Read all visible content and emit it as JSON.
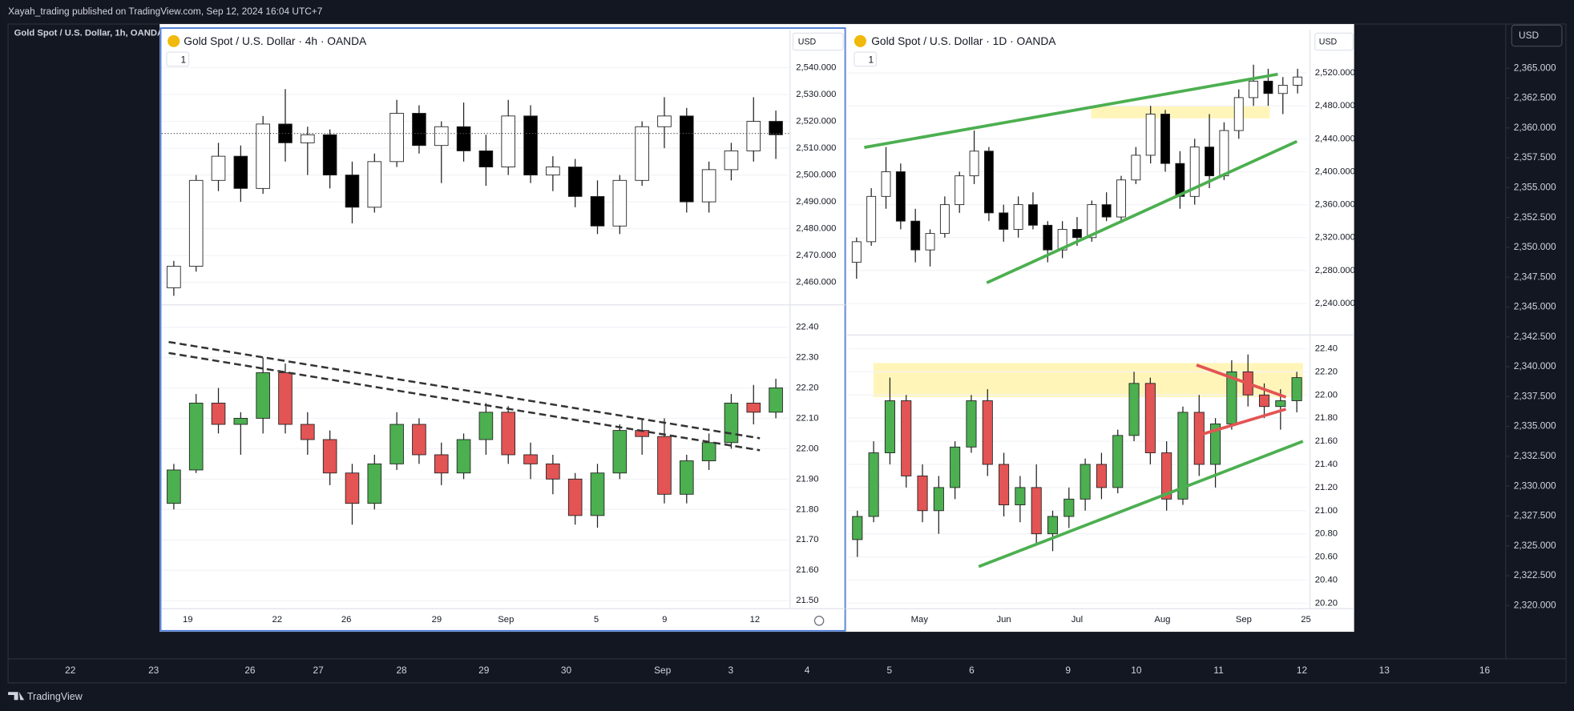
{
  "header": {
    "publisher": "Xayah_trading published on TradingView.com, Sep 12, 2024 16:04 UTC+7"
  },
  "main": {
    "title": "Gold Spot / U.S. Dollar, 1h, OANDA",
    "currency": "USD",
    "ylim": [
      2315.7,
      2368.7
    ],
    "yticks": [
      {
        "value": 2365,
        "label": "2,365.000"
      },
      {
        "value": 2362.5,
        "label": "2,362.500"
      },
      {
        "value": 2360,
        "label": "2,360.000"
      },
      {
        "value": 2357.5,
        "label": "2,357.500"
      },
      {
        "value": 2355,
        "label": "2,355.000"
      },
      {
        "value": 2352.5,
        "label": "2,352.500"
      },
      {
        "value": 2350,
        "label": "2,350.000"
      },
      {
        "value": 2347.5,
        "label": "2,347.500"
      },
      {
        "value": 2345,
        "label": "2,345.000"
      },
      {
        "value": 2342.5,
        "label": "2,342.500"
      },
      {
        "value": 2340,
        "label": "2,340.000"
      },
      {
        "value": 2337.5,
        "label": "2,337.500"
      },
      {
        "value": 2335,
        "label": "2,335.000"
      },
      {
        "value": 2332.5,
        "label": "2,332.500"
      },
      {
        "value": 2330,
        "label": "2,330.000"
      },
      {
        "value": 2327.5,
        "label": "2,327.500"
      },
      {
        "value": 2325,
        "label": "2,325.000"
      },
      {
        "value": 2322.5,
        "label": "2,322.500"
      },
      {
        "value": 2320,
        "label": "2,320.000"
      }
    ],
    "time_labels": [
      "22",
      "23",
      "26",
      "27",
      "28",
      "29",
      "30",
      "Sep",
      "3",
      "4",
      "5",
      "6",
      "9",
      "10",
      "11",
      "12",
      "13",
      "16"
    ]
  },
  "footer": {
    "brand": "TradingView"
  },
  "panels": [
    {
      "title": "Gold Spot / U.S. Dollar · 4h · OANDA",
      "currency": "USD",
      "badge": "1",
      "time_labels": [
        "19",
        "22",
        "26",
        "29",
        "Sep",
        "5",
        "9",
        "12"
      ],
      "panes": [
        {
          "type": "candlestick",
          "ylim": [
            2452,
            2554
          ],
          "up_color": "#ffffff",
          "down_color": "#000000",
          "yticks": [
            {
              "value": 2540,
              "label": "2,540.000"
            },
            {
              "value": 2530,
              "label": "2,530.000"
            },
            {
              "value": 2520,
              "label": "2,520.000"
            },
            {
              "value": 2510,
              "label": "2,510.000"
            },
            {
              "value": 2500,
              "label": "2,500.000"
            },
            {
              "value": 2490,
              "label": "2,490.000"
            },
            {
              "value": 2480,
              "label": "2,480.000"
            },
            {
              "value": 2470,
              "label": "2,470.000"
            },
            {
              "value": 2460,
              "label": "2,460.000"
            }
          ],
          "candles": [
            [
              2458,
              2468,
              2455,
              2466
            ],
            [
              2466,
              2500,
              2464,
              2498
            ],
            [
              2498,
              2512,
              2494,
              2507
            ],
            [
              2507,
              2511,
              2490,
              2495
            ],
            [
              2495,
              2522,
              2493,
              2519
            ],
            [
              2519,
              2532,
              2505,
              2512
            ],
            [
              2512,
              2518,
              2500,
              2515
            ],
            [
              2515,
              2517,
              2495,
              2500
            ],
            [
              2500,
              2505,
              2482,
              2488
            ],
            [
              2488,
              2508,
              2486,
              2505
            ],
            [
              2505,
              2528,
              2503,
              2523
            ],
            [
              2523,
              2526,
              2508,
              2511
            ],
            [
              2511,
              2520,
              2497,
              2518
            ],
            [
              2518,
              2527,
              2505,
              2509
            ],
            [
              2509,
              2515,
              2496,
              2503
            ],
            [
              2503,
              2528,
              2500,
              2522
            ],
            [
              2522,
              2526,
              2497,
              2500
            ],
            [
              2500,
              2507,
              2494,
              2503
            ],
            [
              2503,
              2506,
              2488,
              2492
            ],
            [
              2492,
              2498,
              2478,
              2481
            ],
            [
              2481,
              2500,
              2478,
              2498
            ],
            [
              2498,
              2520,
              2496,
              2518
            ],
            [
              2518,
              2529,
              2510,
              2522
            ],
            [
              2522,
              2525,
              2486,
              2490
            ],
            [
              2490,
              2505,
              2486,
              2502
            ],
            [
              2502,
              2512,
              2498,
              2509
            ],
            [
              2509,
              2529,
              2505,
              2520
            ],
            [
              2520,
              2524,
              2506,
              2515
            ]
          ]
        },
        {
          "type": "candlestick",
          "ylim": [
            21.48,
            22.47
          ],
          "up_color": "#4caf50",
          "down_color": "#e35454",
          "yticks": [
            {
              "value": 22.4,
              "label": "22.40"
            },
            {
              "value": 22.3,
              "label": "22.30"
            },
            {
              "value": 22.2,
              "label": "22.20"
            },
            {
              "value": 22.1,
              "label": "22.10"
            },
            {
              "value": 22,
              "label": "22.00"
            },
            {
              "value": 21.9,
              "label": "21.90"
            },
            {
              "value": 21.8,
              "label": "21.80"
            },
            {
              "value": 21.7,
              "label": "21.70"
            },
            {
              "value": 21.6,
              "label": "21.60"
            },
            {
              "value": 21.5,
              "label": "21.50"
            }
          ],
          "candles": [
            [
              21.82,
              21.95,
              21.8,
              21.93
            ],
            [
              21.93,
              22.18,
              21.92,
              22.15
            ],
            [
              22.15,
              22.2,
              22.05,
              22.08
            ],
            [
              22.08,
              22.12,
              21.98,
              22.1
            ],
            [
              22.1,
              22.3,
              22.05,
              22.25
            ],
            [
              22.25,
              22.28,
              22.05,
              22.08
            ],
            [
              22.08,
              22.12,
              21.98,
              22.03
            ],
            [
              22.03,
              22.06,
              21.88,
              21.92
            ],
            [
              21.92,
              21.95,
              21.75,
              21.82
            ],
            [
              21.82,
              21.98,
              21.8,
              21.95
            ],
            [
              21.95,
              22.12,
              21.93,
              22.08
            ],
            [
              22.08,
              22.1,
              21.95,
              21.98
            ],
            [
              21.98,
              22.02,
              21.88,
              21.92
            ],
            [
              21.92,
              22.05,
              21.9,
              22.03
            ],
            [
              22.03,
              22.15,
              21.98,
              22.12
            ],
            [
              22.12,
              22.14,
              21.95,
              21.98
            ],
            [
              21.98,
              22.02,
              21.9,
              21.95
            ],
            [
              21.95,
              21.98,
              21.85,
              21.9
            ],
            [
              21.9,
              21.92,
              21.75,
              21.78
            ],
            [
              21.78,
              21.95,
              21.74,
              21.92
            ],
            [
              21.92,
              22.08,
              21.9,
              22.06
            ],
            [
              22.06,
              22.1,
              21.98,
              22.04
            ],
            [
              22.04,
              22.1,
              21.82,
              21.85
            ],
            [
              21.85,
              21.98,
              21.82,
              21.96
            ],
            [
              21.96,
              22.05,
              21.93,
              22.02
            ],
            [
              22.02,
              22.18,
              22.0,
              22.15
            ],
            [
              22.15,
              22.21,
              22.08,
              22.12
            ],
            [
              22.12,
              22.23,
              22.1,
              22.2
            ]
          ]
        }
      ]
    },
    {
      "title": "Gold Spot / U.S. Dollar · 1D · OANDA",
      "currency": "USD",
      "badge": "1",
      "time_labels": [
        "May",
        "Jun",
        "Jul",
        "Aug",
        "Sep",
        "25"
      ],
      "panes": [
        {
          "type": "candlestick",
          "ylim": [
            2203,
            2572
          ],
          "up_color": "#ffffff",
          "down_color": "#000000",
          "yticks": [
            {
              "value": 2520,
              "label": "2,520.000"
            },
            {
              "value": 2480,
              "label": "2,480.000"
            },
            {
              "value": 2440,
              "label": "2,440.000"
            },
            {
              "value": 2400,
              "label": "2,400.000"
            },
            {
              "value": 2360,
              "label": "2,360.000"
            },
            {
              "value": 2320,
              "label": "2,320.000"
            },
            {
              "value": 2280,
              "label": "2,280.000"
            },
            {
              "value": 2240,
              "label": "2,240.000"
            }
          ],
          "candles": [
            [
              2290,
              2320,
              2270,
              2315
            ],
            [
              2315,
              2380,
              2310,
              2370
            ],
            [
              2370,
              2430,
              2355,
              2400
            ],
            [
              2400,
              2410,
              2330,
              2340
            ],
            [
              2340,
              2355,
              2290,
              2305
            ],
            [
              2305,
              2330,
              2285,
              2325
            ],
            [
              2325,
              2370,
              2320,
              2360
            ],
            [
              2360,
              2400,
              2350,
              2395
            ],
            [
              2395,
              2450,
              2385,
              2425
            ],
            [
              2425,
              2430,
              2340,
              2350
            ],
            [
              2350,
              2360,
              2315,
              2330
            ],
            [
              2330,
              2370,
              2320,
              2360
            ],
            [
              2360,
              2375,
              2330,
              2335
            ],
            [
              2335,
              2340,
              2290,
              2305
            ],
            [
              2305,
              2340,
              2295,
              2330
            ],
            [
              2330,
              2345,
              2310,
              2320
            ],
            [
              2320,
              2365,
              2315,
              2360
            ],
            [
              2360,
              2375,
              2340,
              2345
            ],
            [
              2345,
              2395,
              2340,
              2390
            ],
            [
              2390,
              2430,
              2385,
              2420
            ],
            [
              2420,
              2480,
              2410,
              2470
            ],
            [
              2470,
              2475,
              2400,
              2410
            ],
            [
              2410,
              2425,
              2355,
              2370
            ],
            [
              2370,
              2440,
              2360,
              2430
            ],
            [
              2430,
              2470,
              2380,
              2395
            ],
            [
              2395,
              2460,
              2390,
              2450
            ],
            [
              2450,
              2500,
              2440,
              2490
            ],
            [
              2490,
              2530,
              2480,
              2510
            ],
            [
              2510,
              2525,
              2480,
              2495
            ],
            [
              2495,
              2515,
              2470,
              2505
            ],
            [
              2505,
              2525,
              2495,
              2515
            ]
          ]
        },
        {
          "type": "candlestick",
          "ylim": [
            20.17,
            22.51
          ],
          "up_color": "#4caf50",
          "down_color": "#e35454",
          "yticks": [
            {
              "value": 22.4,
              "label": "22.40"
            },
            {
              "value": 22.2,
              "label": "22.20"
            },
            {
              "value": 22,
              "label": "22.00"
            },
            {
              "value": 21.8,
              "label": "21.80"
            },
            {
              "value": 21.6,
              "label": "21.60"
            },
            {
              "value": 21.4,
              "label": "21.40"
            },
            {
              "value": 21.2,
              "label": "21.20"
            },
            {
              "value": 21,
              "label": "21.00"
            },
            {
              "value": 20.8,
              "label": "20.80"
            },
            {
              "value": 20.6,
              "label": "20.60"
            },
            {
              "value": 20.4,
              "label": "20.40"
            },
            {
              "value": 20.2,
              "label": "20.20"
            }
          ],
          "candles": [
            [
              20.75,
              21.0,
              20.6,
              20.95
            ],
            [
              20.95,
              21.6,
              20.9,
              21.5
            ],
            [
              21.5,
              22.15,
              21.4,
              21.95
            ],
            [
              21.95,
              22.0,
              21.2,
              21.3
            ],
            [
              21.3,
              21.4,
              20.9,
              21.0
            ],
            [
              21.0,
              21.3,
              20.8,
              21.2
            ],
            [
              21.2,
              21.6,
              21.1,
              21.55
            ],
            [
              21.55,
              22.0,
              21.5,
              21.95
            ],
            [
              21.95,
              22.05,
              21.3,
              21.4
            ],
            [
              21.4,
              21.5,
              20.95,
              21.05
            ],
            [
              21.05,
              21.3,
              20.9,
              21.2
            ],
            [
              21.2,
              21.4,
              20.7,
              20.8
            ],
            [
              20.8,
              21.0,
              20.65,
              20.95
            ],
            [
              20.95,
              21.2,
              20.85,
              21.1
            ],
            [
              21.1,
              21.45,
              21.0,
              21.4
            ],
            [
              21.4,
              21.5,
              21.1,
              21.2
            ],
            [
              21.2,
              21.7,
              21.15,
              21.65
            ],
            [
              21.65,
              22.2,
              21.6,
              22.1
            ],
            [
              22.1,
              22.15,
              21.4,
              21.5
            ],
            [
              21.5,
              21.6,
              21.0,
              21.1
            ],
            [
              21.1,
              21.9,
              21.05,
              21.85
            ],
            [
              21.85,
              22.0,
              21.3,
              21.4
            ],
            [
              21.4,
              21.8,
              21.2,
              21.75
            ],
            [
              21.75,
              22.3,
              21.7,
              22.2
            ],
            [
              22.2,
              22.35,
              21.9,
              22.0
            ],
            [
              22.0,
              22.1,
              21.8,
              21.9
            ],
            [
              21.9,
              22.05,
              21.7,
              21.95
            ],
            [
              21.95,
              22.2,
              21.85,
              22.15
            ]
          ]
        }
      ]
    }
  ]
}
